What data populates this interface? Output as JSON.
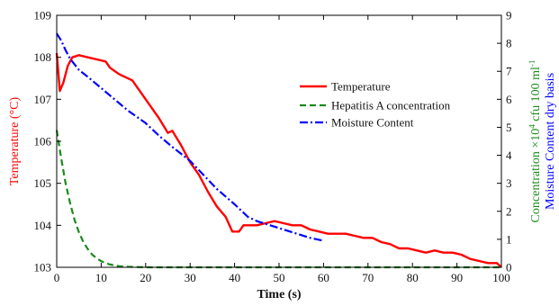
{
  "chart_data": {
    "type": "line",
    "xlabel": "Time (s)",
    "ylabel_left": "Temperature (°C)",
    "ylabel_right": "Concentration ×10⁴ cfu 100 ml⁻¹ Moisture Content dry basis",
    "ylabel_right_conc": "Concentration ×10",
    "ylabel_right_sup1": "4",
    "ylabel_right_units": " cfu 100 ml",
    "ylabel_right_sup2": "-1",
    "ylabel_right_moist": "Moisture Content dry basis",
    "xlim": [
      0,
      100
    ],
    "ylim_left": [
      103,
      109
    ],
    "ylim_right": [
      0,
      9
    ],
    "x_ticks": [
      0,
      10,
      20,
      30,
      40,
      50,
      60,
      70,
      80,
      90,
      100
    ],
    "y_left_ticks": [
      103,
      104,
      105,
      106,
      107,
      108,
      109
    ],
    "y_right_ticks": [
      0,
      1,
      2,
      3,
      4,
      5,
      6,
      7,
      8,
      9
    ],
    "legend_position": "upper-right",
    "series": [
      {
        "name": "Temperature",
        "axis": "left",
        "color": "#ff0000",
        "style": "solid",
        "x": [
          0,
          0.7,
          1.5,
          2.5,
          3.5,
          5,
          7,
          9,
          11,
          12,
          14,
          15,
          17,
          19,
          21,
          23,
          25,
          26,
          28,
          30,
          32,
          34,
          36,
          38,
          39.5,
          41,
          42,
          43,
          45,
          47,
          49,
          51,
          53,
          55,
          57,
          59,
          61,
          63,
          65,
          67,
          69,
          71,
          73,
          75,
          77,
          79,
          81,
          83,
          85,
          87,
          89,
          91,
          93,
          95,
          97,
          99,
          100
        ],
        "y": [
          108.1,
          107.2,
          107.4,
          107.8,
          108.0,
          108.05,
          108.0,
          107.95,
          107.9,
          107.75,
          107.6,
          107.55,
          107.45,
          107.15,
          106.85,
          106.55,
          106.2,
          106.25,
          105.9,
          105.5,
          105.2,
          104.8,
          104.45,
          104.2,
          103.85,
          103.85,
          104.0,
          104.0,
          104.0,
          104.05,
          104.1,
          104.05,
          104.0,
          104.0,
          103.9,
          103.85,
          103.8,
          103.8,
          103.8,
          103.75,
          103.7,
          103.7,
          103.6,
          103.55,
          103.45,
          103.45,
          103.4,
          103.35,
          103.4,
          103.35,
          103.35,
          103.3,
          103.2,
          103.15,
          103.1,
          103.1,
          103.0
        ]
      },
      {
        "name": "Hepatitis A concentration",
        "axis": "right",
        "color": "#1a8a1a",
        "style": "dashed",
        "x": [
          0,
          1,
          2,
          3,
          4,
          5,
          6,
          7,
          8,
          9,
          10,
          11,
          12,
          13,
          14,
          15,
          16,
          18,
          20,
          25,
          30,
          40,
          50,
          60,
          70,
          80,
          90,
          100
        ],
        "y": [
          4.9,
          3.9,
          3.0,
          2.3,
          1.7,
          1.25,
          0.9,
          0.65,
          0.45,
          0.32,
          0.22,
          0.15,
          0.1,
          0.07,
          0.04,
          0.03,
          0.02,
          0.01,
          0.0,
          0.0,
          0.0,
          0.0,
          0.0,
          0.0,
          0.0,
          0.0,
          0.0,
          0.0
        ]
      },
      {
        "name": "Moisture Content",
        "axis": "right",
        "color": "#0000ff",
        "style": "dashdot",
        "x": [
          0,
          1,
          2,
          3,
          4,
          5,
          7,
          10,
          13,
          16,
          20,
          23,
          26,
          30,
          33,
          36,
          40,
          43,
          45,
          48,
          51,
          54,
          57,
          60
        ],
        "y": [
          8.35,
          8.1,
          7.75,
          7.45,
          7.25,
          7.05,
          6.8,
          6.4,
          6.0,
          5.6,
          5.15,
          4.7,
          4.3,
          3.8,
          3.3,
          2.8,
          2.25,
          1.8,
          1.65,
          1.5,
          1.35,
          1.2,
          1.05,
          0.95
        ]
      }
    ]
  }
}
